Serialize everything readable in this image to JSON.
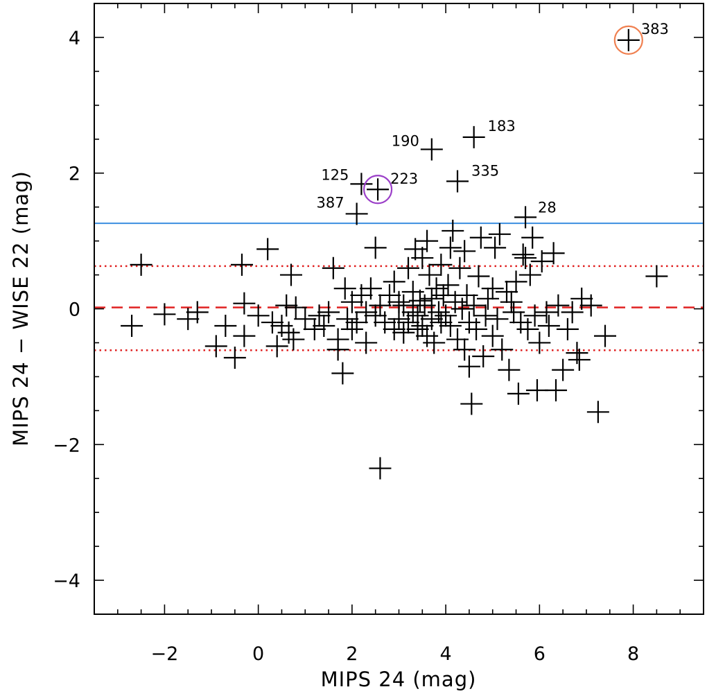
{
  "chart_data": {
    "type": "scatter",
    "xlabel": "MIPS 24 (mag)",
    "ylabel": "MIPS 24 − WISE 22 (mag)",
    "xlim": [
      -3.5,
      9.5
    ],
    "ylim": [
      -4.5,
      4.5
    ],
    "x_ticks": [
      -2,
      0,
      2,
      4,
      6,
      8
    ],
    "x_tick_labels": [
      "−2",
      "0",
      "2",
      "4",
      "6",
      "8"
    ],
    "y_ticks": [
      -4,
      -2,
      0,
      2,
      4
    ],
    "y_tick_labels": [
      "−4",
      "−2",
      "0",
      "2",
      "4"
    ],
    "marker": "plus",
    "reference_lines": [
      {
        "name": "mean-line",
        "y": 0.02,
        "style": "dashed",
        "color": "#e02020"
      },
      {
        "name": "upper-scatter-line",
        "y": 0.63,
        "style": "dotted",
        "color": "#e02020"
      },
      {
        "name": "lower-scatter-line",
        "y": -0.61,
        "style": "dotted",
        "color": "#e02020"
      },
      {
        "name": "threshold-line",
        "y": 1.26,
        "style": "solid",
        "color": "#3a8ee0"
      }
    ],
    "highlight_circles": [
      {
        "x": 2.55,
        "y": 1.76,
        "color": "#9b3fc8"
      },
      {
        "x": 7.9,
        "y": 3.96,
        "color": "#f08050"
      }
    ],
    "labeled_points": [
      {
        "x": 7.9,
        "y": 3.96,
        "label": "383"
      },
      {
        "x": 4.6,
        "y": 2.53,
        "label": "183"
      },
      {
        "x": 3.7,
        "y": 2.35,
        "label": "190"
      },
      {
        "x": 2.2,
        "y": 1.84,
        "label": "125"
      },
      {
        "x": 2.55,
        "y": 1.76,
        "label": "223"
      },
      {
        "x": 4.25,
        "y": 1.88,
        "label": "335"
      },
      {
        "x": 2.1,
        "y": 1.4,
        "label": "387"
      },
      {
        "x": 5.7,
        "y": 1.35,
        "label": "28"
      }
    ],
    "points": [
      [
        -2.7,
        -0.25
      ],
      [
        -2.5,
        0.65
      ],
      [
        -2.0,
        -0.08
      ],
      [
        -1.5,
        -0.15
      ],
      [
        -1.3,
        -0.05
      ],
      [
        -0.9,
        -0.55
      ],
      [
        -0.7,
        -0.25
      ],
      [
        -0.5,
        -0.72
      ],
      [
        -0.35,
        0.65
      ],
      [
        -0.3,
        -0.4
      ],
      [
        -0.3,
        0.08
      ],
      [
        0.0,
        -0.1
      ],
      [
        0.2,
        0.88
      ],
      [
        0.3,
        -0.2
      ],
      [
        0.4,
        -0.55
      ],
      [
        0.5,
        -0.25
      ],
      [
        0.6,
        0.05
      ],
      [
        0.65,
        -0.35
      ],
      [
        0.7,
        0.5
      ],
      [
        0.75,
        -0.45
      ],
      [
        0.8,
        0.02
      ],
      [
        1.0,
        -0.15
      ],
      [
        1.2,
        -0.3
      ],
      [
        1.3,
        -0.1
      ],
      [
        1.4,
        -0.25
      ],
      [
        1.5,
        -0.05
      ],
      [
        1.6,
        0.6
      ],
      [
        1.7,
        -0.45
      ],
      [
        1.7,
        -0.6
      ],
      [
        1.8,
        -0.95
      ],
      [
        1.85,
        0.3
      ],
      [
        1.9,
        -0.15
      ],
      [
        2.0,
        -0.3
      ],
      [
        2.0,
        0.1
      ],
      [
        2.1,
        -0.2
      ],
      [
        2.2,
        0.2
      ],
      [
        2.3,
        -0.5
      ],
      [
        2.3,
        -0.05
      ],
      [
        2.4,
        0.3
      ],
      [
        2.5,
        0.9
      ],
      [
        2.5,
        -0.1
      ],
      [
        2.6,
        0.05
      ],
      [
        2.6,
        -2.35
      ],
      [
        2.7,
        -0.2
      ],
      [
        2.8,
        0.2
      ],
      [
        2.9,
        -0.3
      ],
      [
        2.9,
        0.4
      ],
      [
        3.0,
        0.1
      ],
      [
        3.0,
        -0.15
      ],
      [
        3.1,
        -0.35
      ],
      [
        3.1,
        0.05
      ],
      [
        3.2,
        0.6
      ],
      [
        3.2,
        -0.2
      ],
      [
        3.3,
        -0.05
      ],
      [
        3.3,
        0.25
      ],
      [
        3.35,
        0.88
      ],
      [
        3.4,
        -0.1
      ],
      [
        3.4,
        -0.3
      ],
      [
        3.45,
        0.12
      ],
      [
        3.5,
        -0.25
      ],
      [
        3.5,
        0.75
      ],
      [
        3.55,
        0.05
      ],
      [
        3.6,
        -0.4
      ],
      [
        3.6,
        1.0
      ],
      [
        3.65,
        0.5
      ],
      [
        3.7,
        -0.15
      ],
      [
        3.7,
        0.15
      ],
      [
        3.75,
        -0.5
      ],
      [
        3.8,
        0.3
      ],
      [
        3.85,
        -0.05
      ],
      [
        3.9,
        0.65
      ],
      [
        3.9,
        -0.2
      ],
      [
        3.95,
        0.2
      ],
      [
        4.0,
        -0.1
      ],
      [
        4.05,
        0.35
      ],
      [
        4.1,
        0.9
      ],
      [
        4.1,
        -0.25
      ],
      [
        4.15,
        1.15
      ],
      [
        4.2,
        0.1
      ],
      [
        4.25,
        -0.45
      ],
      [
        4.3,
        0.6
      ],
      [
        4.35,
        0.0
      ],
      [
        4.4,
        0.85
      ],
      [
        4.4,
        -0.6
      ],
      [
        4.45,
        0.2
      ],
      [
        4.5,
        -0.85
      ],
      [
        4.5,
        -0.2
      ],
      [
        4.55,
        -1.4
      ],
      [
        4.6,
        0.05
      ],
      [
        4.65,
        -0.3
      ],
      [
        4.7,
        0.48
      ],
      [
        4.75,
        1.05
      ],
      [
        4.8,
        -0.7
      ],
      [
        4.85,
        -0.1
      ],
      [
        4.9,
        0.15
      ],
      [
        5.0,
        -0.4
      ],
      [
        5.0,
        0.3
      ],
      [
        5.05,
        0.9
      ],
      [
        5.1,
        -0.15
      ],
      [
        5.15,
        1.1
      ],
      [
        5.2,
        -0.6
      ],
      [
        5.3,
        0.25
      ],
      [
        5.35,
        -0.9
      ],
      [
        5.4,
        0.1
      ],
      [
        5.45,
        -0.05
      ],
      [
        5.5,
        0.4
      ],
      [
        5.55,
        -1.25
      ],
      [
        5.6,
        -0.2
      ],
      [
        5.65,
        0.8
      ],
      [
        5.7,
        0.75
      ],
      [
        5.75,
        -0.3
      ],
      [
        5.8,
        0.5
      ],
      [
        5.85,
        1.05
      ],
      [
        5.9,
        -0.1
      ],
      [
        5.95,
        -1.2
      ],
      [
        6.0,
        -0.5
      ],
      [
        6.05,
        0.7
      ],
      [
        6.15,
        -0.05
      ],
      [
        6.2,
        -0.25
      ],
      [
        6.3,
        0.82
      ],
      [
        6.35,
        -1.2
      ],
      [
        6.4,
        0.05
      ],
      [
        6.5,
        -0.9
      ],
      [
        6.6,
        -0.3
      ],
      [
        6.7,
        -0.05
      ],
      [
        6.8,
        -0.65
      ],
      [
        6.85,
        -0.75
      ],
      [
        6.9,
        0.15
      ],
      [
        7.1,
        0.05
      ],
      [
        7.25,
        -1.52
      ],
      [
        7.4,
        -0.4
      ],
      [
        8.5,
        0.48
      ]
    ]
  }
}
